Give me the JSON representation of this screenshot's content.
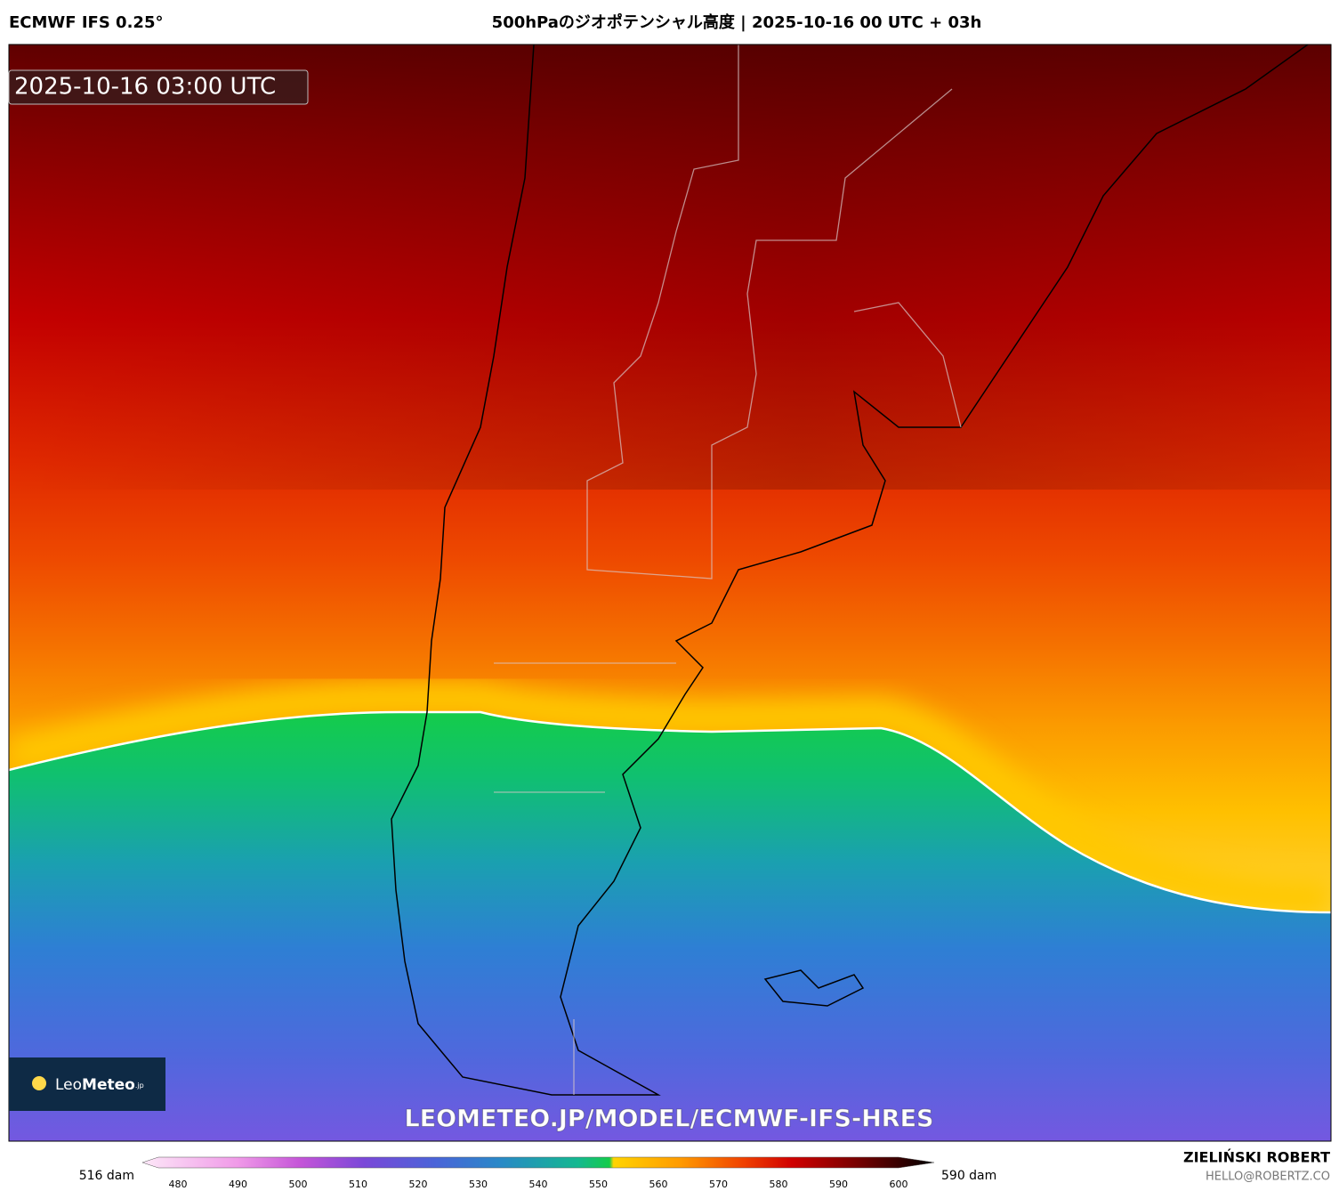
{
  "header": {
    "model": "ECMWF IFS 0.25°",
    "title": "500hPaのジオポテンシャル高度 | 2025-10-16 00 UTC + 03h"
  },
  "map": {
    "valid_time": "2025-10-16 03:00 UTC",
    "logo": {
      "name_light": "Leo",
      "name_bold": "Meteo",
      "suffix": ".jp"
    },
    "watermark": "LEOMETEO.JP/MODEL/ECMWF-IFS-HRES"
  },
  "colorbar": {
    "min_label": "516 dam",
    "max_label": "590 dam",
    "ticks": [
      480,
      490,
      500,
      510,
      520,
      530,
      540,
      550,
      560,
      570,
      580,
      590,
      600
    ]
  },
  "credits": {
    "author": "ZIELIŃSKI ROBERT",
    "contact": "HELLO@ROBERTZ.CO"
  }
}
